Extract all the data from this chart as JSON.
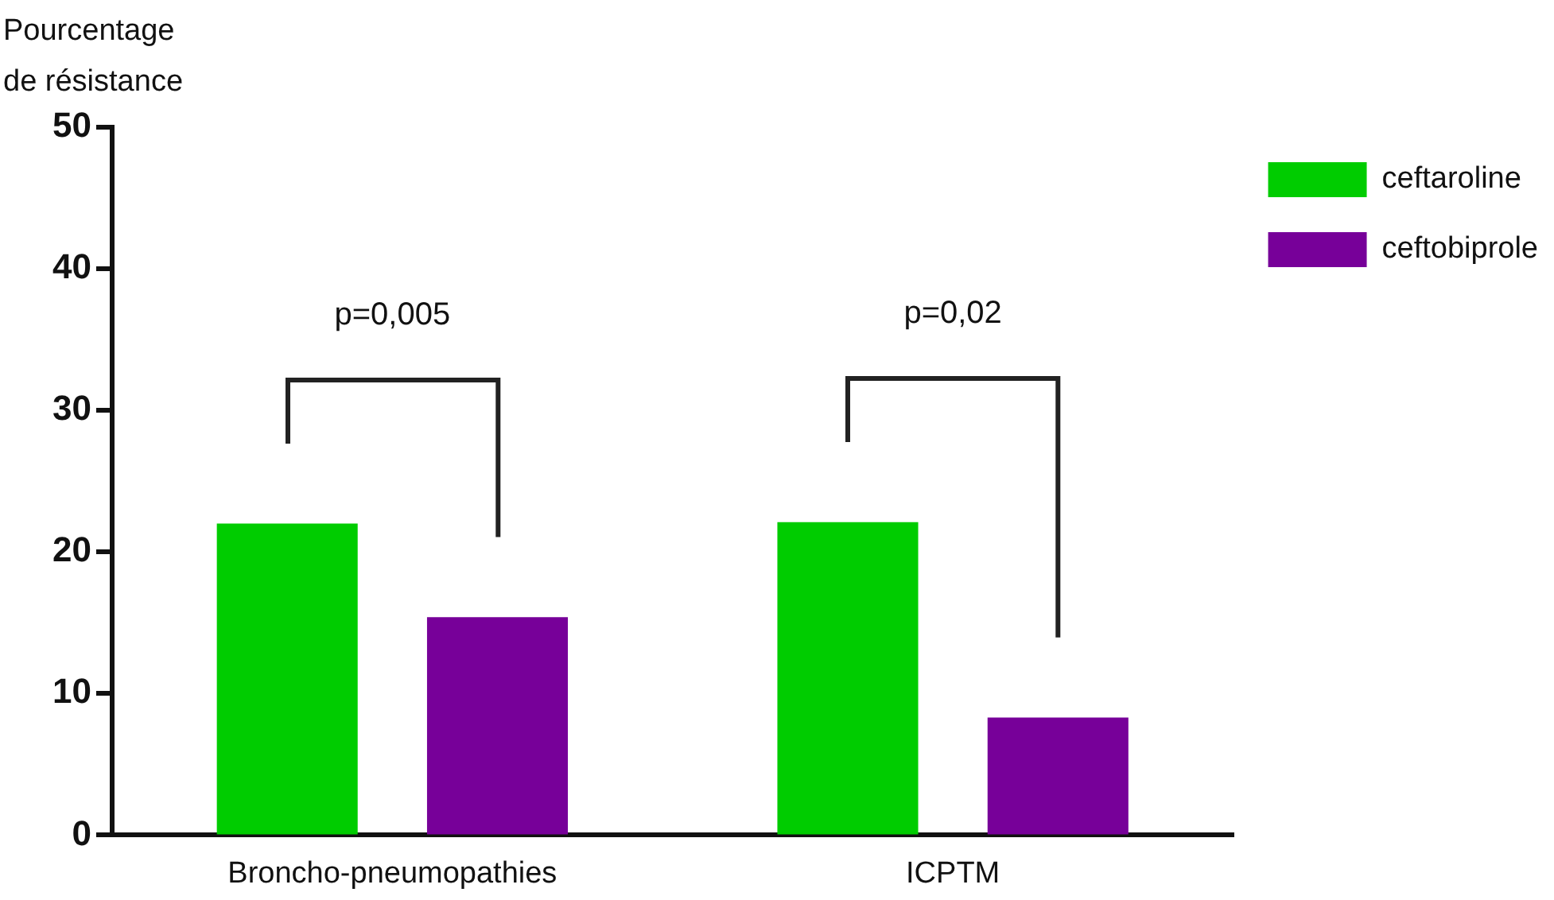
{
  "chart_data": {
    "type": "bar",
    "ylabel": "Pourcentage\nde résistance",
    "categories": [
      "Broncho-pneumopathies",
      "ICPTM"
    ],
    "series": [
      {
        "name": "ceftaroline",
        "color": "#00cc00",
        "values": [
          22,
          22.1
        ]
      },
      {
        "name": "ceftobiprole",
        "color": "#770099",
        "values": [
          15.4,
          8.3
        ]
      }
    ],
    "ylim": [
      0,
      50
    ],
    "yticks": [
      0,
      10,
      20,
      30,
      40,
      50
    ],
    "grid": false,
    "legend": "top right",
    "annotations": [
      "p=0,005",
      "p=0,02"
    ]
  }
}
